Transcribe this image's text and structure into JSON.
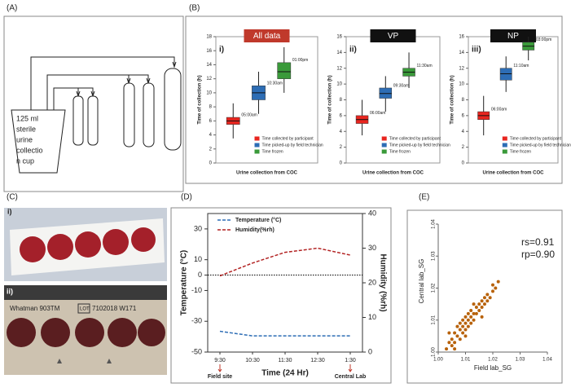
{
  "panel_labels": [
    "(A)",
    "(B)",
    "(C)",
    "(D)",
    "(E)"
  ],
  "diagram": {
    "cup_text_lines": [
      "125     ml",
      "sterile",
      "urine",
      "collectio",
      "n cup"
    ]
  },
  "photos": {
    "photo_i_label": "i)",
    "photo_ii_label": "ii)",
    "photo_ii_brand": "Whatman 903TM",
    "photo_ii_lot": "LOT",
    "photo_ii_code": "7102018 W171"
  },
  "chart_data": [
    {
      "type": "box",
      "label": "i)",
      "title": "All data",
      "title_color": "#c0392b",
      "ylabel": "Time of collection (h)",
      "xlabel": "Urine collection from COC",
      "ylim": [
        0,
        18
      ],
      "yticks": [
        0,
        2,
        4,
        6,
        8,
        10,
        12,
        14,
        16,
        18
      ],
      "series": [
        {
          "name": "Time collected by participant",
          "color": "#e8251f",
          "whislo": 3.5,
          "q1": 5.5,
          "median": 6,
          "q3": 6.5,
          "whishi": 8.5,
          "annotation": "05:00am"
        },
        {
          "name": "Time picked-up by field technician",
          "color": "#2d6db5",
          "whislo": 7,
          "q1": 9,
          "median": 10,
          "q3": 11,
          "whishi": 13,
          "annotation": "10:30am"
        },
        {
          "name": "Time frozen",
          "color": "#3a9a3a",
          "whislo": 10,
          "q1": 12,
          "median": 13,
          "q3": 14.3,
          "whishi": 16.5,
          "annotation": "01:00pm"
        }
      ]
    },
    {
      "type": "box",
      "label": "ii)",
      "title": "VP",
      "title_color": "#111111",
      "ylabel": "Time of collection (h)",
      "xlabel": "Urine collection from COC",
      "ylim": [
        0,
        16
      ],
      "yticks": [
        0,
        2,
        4,
        6,
        8,
        10,
        12,
        14,
        16
      ],
      "series": [
        {
          "name": "Time collected by participant",
          "color": "#e8251f",
          "whislo": 3.5,
          "q1": 5,
          "median": 5.5,
          "q3": 6,
          "whishi": 8,
          "annotation": "06:00am"
        },
        {
          "name": "Time picked-up by field technician",
          "color": "#2d6db5",
          "whislo": 6.5,
          "q1": 8.2,
          "median": 8.8,
          "q3": 9.5,
          "whishi": 11,
          "annotation": "09:30am"
        },
        {
          "name": "Time frozen",
          "color": "#3a9a3a",
          "whislo": 9.5,
          "q1": 11,
          "median": 11.5,
          "q3": 12,
          "whishi": 14,
          "annotation": "11:30am"
        }
      ]
    },
    {
      "type": "box",
      "label": "iii)",
      "title": "NP",
      "title_color": "#111111",
      "ylabel": "Time of collection (h)",
      "xlabel": "Urine collection from COC",
      "ylim": [
        0,
        16
      ],
      "yticks": [
        0,
        2,
        4,
        6,
        8,
        10,
        12,
        14,
        16
      ],
      "series": [
        {
          "name": "Time collected by participant",
          "color": "#e8251f",
          "whislo": 3.5,
          "q1": 5.5,
          "median": 6,
          "q3": 6.5,
          "whishi": 8.5,
          "annotation": "06:00am"
        },
        {
          "name": "Time picked-up by field technician",
          "color": "#2d6db5",
          "whislo": 9,
          "q1": 10.5,
          "median": 11.3,
          "q3": 12,
          "whishi": 13.5,
          "annotation": "11:10am"
        },
        {
          "name": "Time frozen",
          "color": "#3a9a3a",
          "whislo": 13,
          "q1": 14.3,
          "median": 14.8,
          "q3": 15.3,
          "whishi": 16,
          "annotation": "03:00pm"
        }
      ]
    },
    {
      "type": "line",
      "ylabel": "Temperature (°C)",
      "y2label": "Humidity (%rh)",
      "xlabel": "Time (24 Hr)",
      "categories": [
        "9:30",
        "10:30",
        "11:30",
        "12:30",
        "1:30"
      ],
      "x_annotations": [
        "Field site",
        null,
        null,
        null,
        "Central Lab"
      ],
      "ylim": [
        -50,
        40
      ],
      "yticks": [
        30,
        10,
        0,
        -10,
        -30,
        -50
      ],
      "y2lim": [
        0,
        40
      ],
      "y2ticks": [
        0,
        10,
        20,
        30,
        40
      ],
      "reference_line": 0,
      "series": [
        {
          "name": "Temperature (°C)",
          "color": "#2d6db5",
          "values": [
            -36.5,
            -39.5,
            -39.5,
            -39.5,
            -39.5
          ]
        },
        {
          "name": "Humidity(%rh)",
          "color": "#b22222",
          "axis": "y2",
          "values": [
            22,
            25.7,
            28.8,
            30,
            28
          ]
        }
      ]
    },
    {
      "type": "scatter",
      "xlabel": "Field lab_SG",
      "ylabel": "Central lab_SG",
      "annotations": [
        "rs=0.91",
        "rp=0.90"
      ],
      "color": "#b8620a",
      "xlim": [
        1.0,
        1.04
      ],
      "ylim": [
        1.0,
        1.04
      ],
      "xticks": [
        {
          "value": 1.0,
          "label": "1.00"
        },
        1.01,
        1.02,
        1.03,
        1.04
      ],
      "yticks": [
        {
          "value": 1.0,
          "label": "1.00"
        },
        1.01,
        1.02,
        1.03,
        1.04
      ],
      "x": [
        1.003,
        1.004,
        1.005,
        1.005,
        1.006,
        1.006,
        1.007,
        1.007,
        1.008,
        1.008,
        1.008,
        1.009,
        1.009,
        1.009,
        1.01,
        1.01,
        1.01,
        1.011,
        1.011,
        1.011,
        1.012,
        1.012,
        1.012,
        1.013,
        1.013,
        1.014,
        1.014,
        1.015,
        1.015,
        1.016,
        1.016,
        1.017,
        1.017,
        1.018,
        1.018,
        1.019,
        1.02,
        1.02,
        1.021,
        1.022,
        1.006,
        1.01,
        1.013,
        1.016,
        1.004
      ],
      "y": [
        1.001,
        1.003,
        1.002,
        1.004,
        1.003,
        1.006,
        1.005,
        1.008,
        1.004,
        1.007,
        1.009,
        1.006,
        1.008,
        1.01,
        1.007,
        1.009,
        1.011,
        1.008,
        1.01,
        1.012,
        1.009,
        1.011,
        1.013,
        1.01,
        1.012,
        1.012,
        1.014,
        1.013,
        1.015,
        1.014,
        1.016,
        1.015,
        1.017,
        1.016,
        1.018,
        1.017,
        1.019,
        1.021,
        1.02,
        1.022,
        1.001,
        1.005,
        1.015,
        1.011,
        1.006
      ]
    }
  ]
}
